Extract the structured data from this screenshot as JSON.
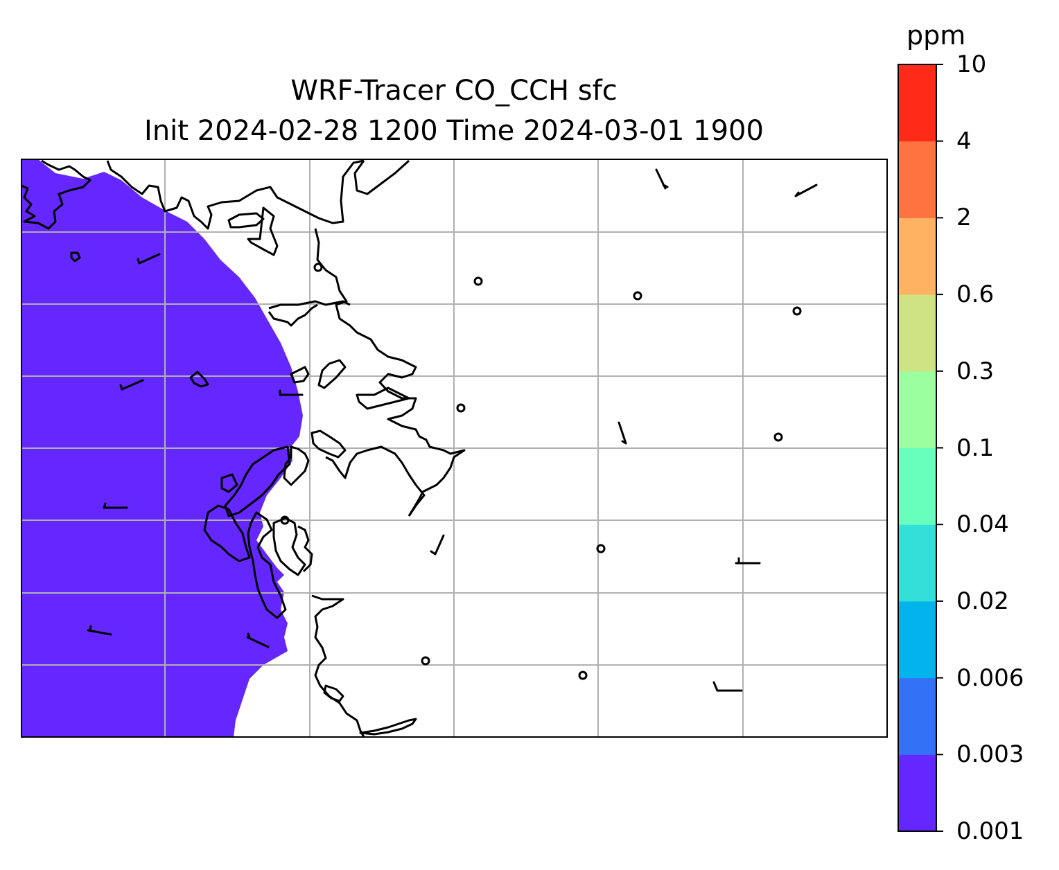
{
  "title": {
    "line1": "WRF-Tracer CO_CCH sfc",
    "line2": "Init 2024-02-28 1200 Time 2024-03-01 1900"
  },
  "colorbar": {
    "unit": "ppm",
    "levels": [
      "0.001",
      "0.003",
      "0.006",
      "0.02",
      "0.04",
      "0.1",
      "0.3",
      "0.6",
      "2",
      "4",
      "10"
    ],
    "colors": [
      "#6527ff",
      "#3371f6",
      "#02b3ec",
      "#33e0d9",
      "#68ffbc",
      "#9bff9f",
      "#d0e384",
      "#ffb262",
      "#ff7341",
      "#ff2a17"
    ]
  },
  "map": {
    "field_value_level": "0.001-0.003",
    "field_color": "#6527ff",
    "gridline_color": "#b0b0b0",
    "coastline_color": "#000000"
  }
}
